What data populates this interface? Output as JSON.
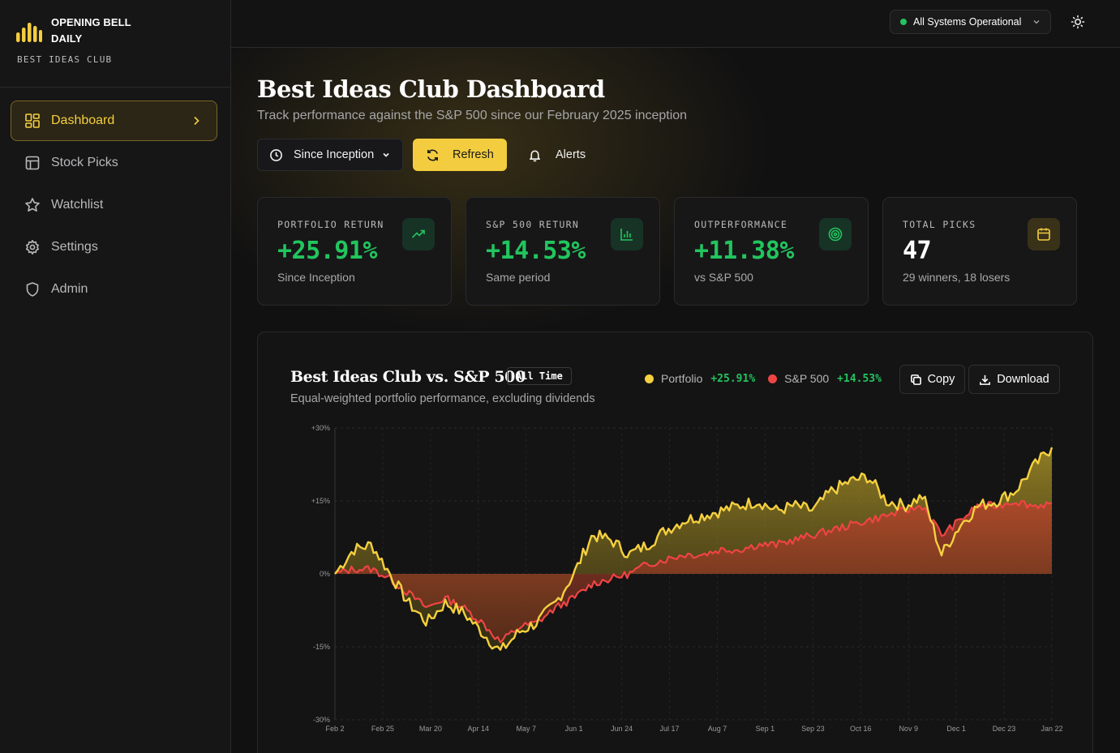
{
  "brand": {
    "name_line1": "OPENING BELL",
    "name_line2": "DAILY",
    "subtitle": "BEST IDEAS CLUB",
    "accent_color": "#f3cd3f"
  },
  "sidebar": {
    "items": [
      {
        "label": "Dashboard",
        "icon": "dashboard-grid-icon",
        "active": true
      },
      {
        "label": "Stock Picks",
        "icon": "table-icon",
        "active": false
      },
      {
        "label": "Watchlist",
        "icon": "star-icon",
        "active": false
      },
      {
        "label": "Settings",
        "icon": "gear-icon",
        "active": false
      },
      {
        "label": "Admin",
        "icon": "shield-icon",
        "active": false
      }
    ]
  },
  "topbar": {
    "status_label": "All Systems Operational",
    "status_color": "#22c55e",
    "theme_icon": "sun-icon"
  },
  "header": {
    "title": "Best Ideas Club Dashboard",
    "subtitle": "Track performance against the S&P 500 since our February 2025 inception"
  },
  "controls": {
    "range_label": "Since Inception",
    "refresh_label": "Refresh",
    "alerts_label": "Alerts"
  },
  "stats": [
    {
      "label": "PORTFOLIO RETURN",
      "value": "+25.91%",
      "note": "Since Inception",
      "icon": "trending-up-icon",
      "positive": true
    },
    {
      "label": "S&P 500 RETURN",
      "value": "+14.53%",
      "note": "Same period",
      "icon": "bar-chart-icon",
      "positive": true
    },
    {
      "label": "OUTPERFORMANCE",
      "value": "+11.38%",
      "note": "vs S&P 500",
      "icon": "target-icon",
      "positive": true
    },
    {
      "label": "TOTAL PICKS",
      "value": "47",
      "note": "29 winners, 18 losers",
      "icon": "calendar-icon",
      "positive": false
    }
  ],
  "chart_panel": {
    "title": "Best Ideas Club  vs. S&P 500",
    "badge": "All Time",
    "subtitle": "Equal-weighted portfolio performance, excluding dividends",
    "copy_label": "Copy",
    "download_label": "Download",
    "legend": [
      {
        "name": "Portfolio",
        "value": "+25.91%",
        "color": "#f5d03f"
      },
      {
        "name": "S&P 500",
        "value": "+14.53%",
        "color": "#ef4444"
      }
    ]
  },
  "chart_data": {
    "type": "line",
    "y_ticks": [
      "+30%",
      "+15%",
      "0%",
      "-15%",
      "-30%"
    ],
    "ylim": [
      -30,
      30
    ],
    "x_ticks": [
      "Feb 2",
      "Feb 25",
      "Mar 20",
      "Apr 14",
      "May 7",
      "Jun 1",
      "Jun 24",
      "Jul 17",
      "Aug 7",
      "Sep 1",
      "Sep 23",
      "Oct 16",
      "Nov 9",
      "Dec 1",
      "Dec 23",
      "Jan 22"
    ],
    "grid": true,
    "series": [
      {
        "name": "Portfolio",
        "color": "#f5d03f",
        "values": [
          0,
          5,
          6,
          0,
          -6,
          -10,
          -6,
          -8,
          -12,
          -16,
          -12,
          -10,
          -6,
          0,
          8,
          7,
          4,
          6,
          9,
          11,
          12,
          13,
          14,
          15,
          13,
          14,
          13,
          17,
          19,
          20,
          15,
          14,
          16,
          4,
          10,
          14,
          15,
          17,
          22,
          26
        ]
      },
      {
        "name": "S&P 500",
        "color": "#ef4444",
        "values": [
          0,
          1,
          1,
          -1,
          -4,
          -7,
          -5,
          -7,
          -10,
          -14,
          -11,
          -10,
          -7,
          -5,
          -2,
          -1,
          0,
          2,
          3,
          4,
          4,
          5,
          5,
          6,
          6,
          7,
          8,
          9,
          10,
          11,
          12,
          13,
          14,
          8,
          11,
          14,
          14,
          15,
          14,
          14.5
        ]
      }
    ]
  }
}
